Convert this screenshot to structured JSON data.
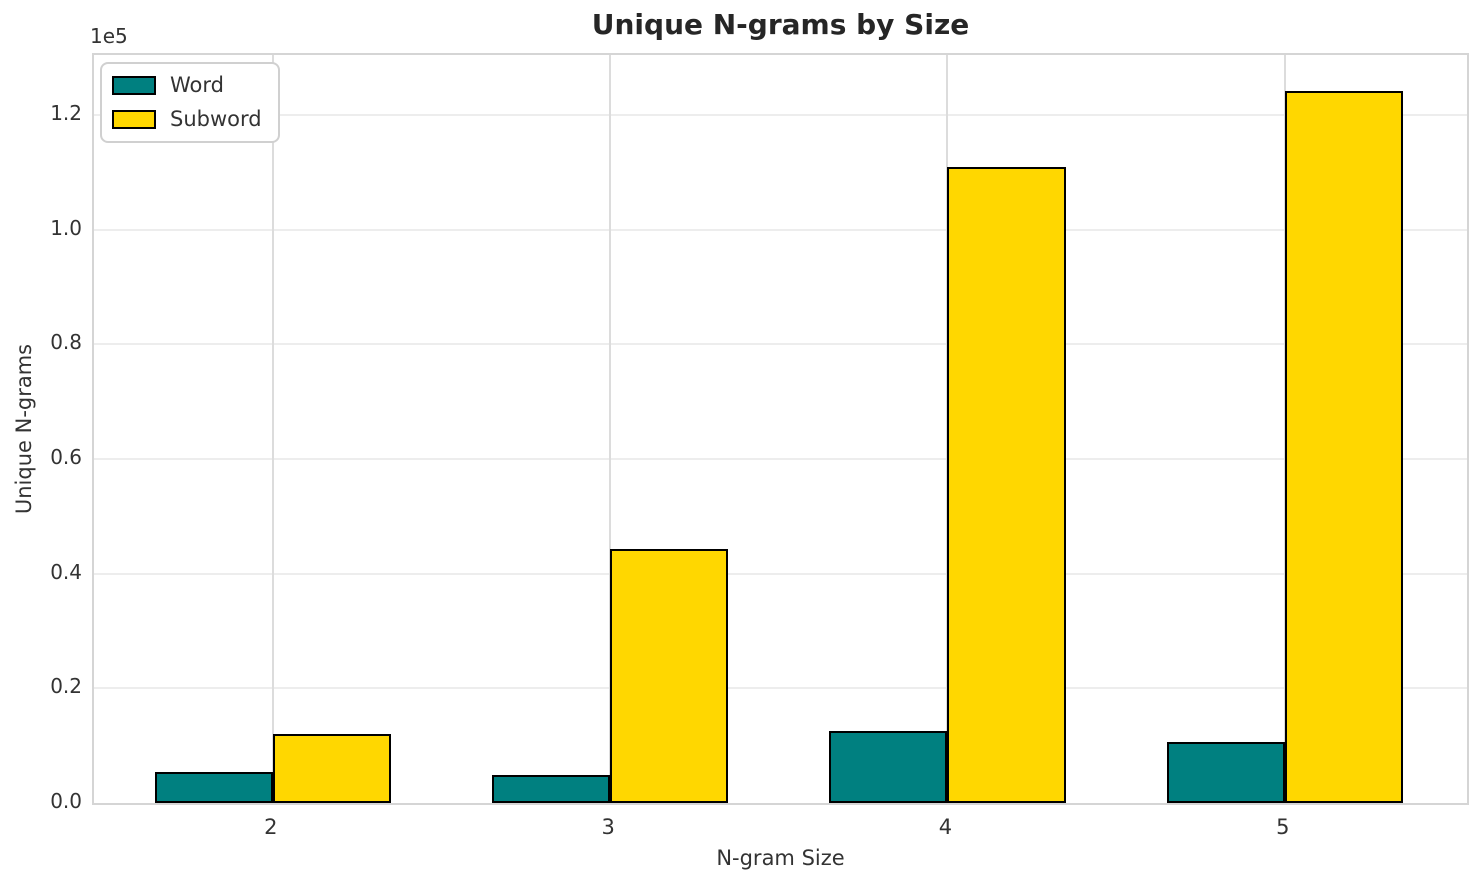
{
  "title": "Unique N-grams by Size",
  "offset_text": "1e5",
  "axes": {
    "x_label": "N-gram Size",
    "y_label": "Unique N-grams",
    "x_tick_labels": [
      "2",
      "3",
      "4",
      "5"
    ],
    "y_tick_labels": [
      "0.0",
      "0.2",
      "0.4",
      "0.6",
      "0.8",
      "1.0",
      "1.2"
    ]
  },
  "legend": {
    "items": [
      {
        "label": "Word",
        "color": "#008080"
      },
      {
        "label": "Subword",
        "color": "#FFD700"
      }
    ]
  },
  "chart_data": {
    "type": "bar",
    "title": "Unique N-grams by Size",
    "xlabel": "N-gram Size",
    "ylabel": "Unique N-grams",
    "categories": [
      "2",
      "3",
      "4",
      "5"
    ],
    "series": [
      {
        "name": "Word",
        "color": "#008080",
        "values": [
          5400,
          4900,
          12650,
          10700
        ]
      },
      {
        "name": "Subword",
        "color": "#FFD700",
        "values": [
          12100,
          44400,
          111000,
          124300
        ]
      }
    ],
    "y_tick_values": [
      0,
      20000,
      40000,
      60000,
      80000,
      100000,
      120000
    ],
    "y_scale_label": "1e5",
    "ylim": [
      0,
      130500
    ],
    "xlim": [
      -0.53,
      3.54
    ],
    "bar_width_frac": 0.35,
    "bar_edge_color": "#000000",
    "grid": true,
    "legend_position": "upper left"
  },
  "colors": {
    "background": "#ffffff",
    "spine": "#d5d5d5",
    "gridline_horizontal": "#ededed",
    "gridline_vertical": "#dcdcdc",
    "text": "#333333",
    "title_text": "#262626"
  }
}
